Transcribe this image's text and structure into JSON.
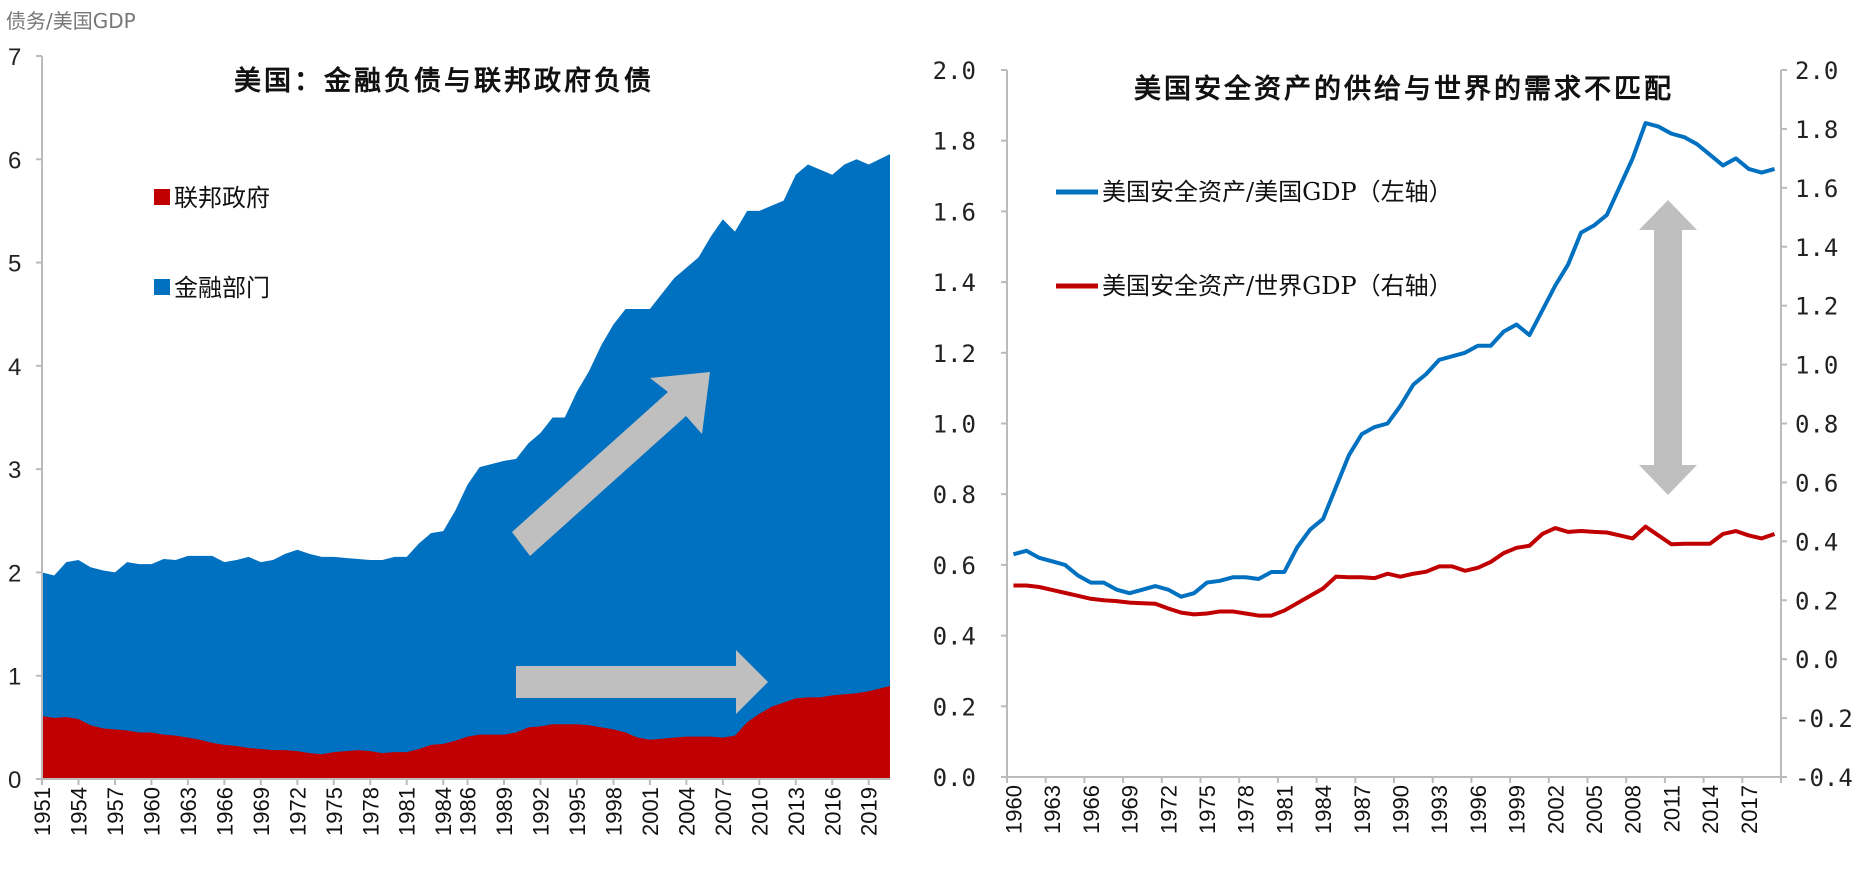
{
  "unit_label": "债务/美国GDP",
  "chart_data": [
    {
      "type": "area",
      "stacked": true,
      "title": "美国：金融负债与联邦政府负债",
      "ylabel": "债务/美国GDP",
      "ylim": [
        0,
        7
      ],
      "yticks": [
        "0",
        "1",
        "2",
        "3",
        "4",
        "5",
        "6",
        "7"
      ],
      "xticks": [
        "1951",
        "1954",
        "1957",
        "1960",
        "1963",
        "1966",
        "1969",
        "1972",
        "1975",
        "1978",
        "1981",
        "1984",
        "1986",
        "1989",
        "1992",
        "1995",
        "1998",
        "2001",
        "2004",
        "2007",
        "2010",
        "2013",
        "2016",
        "2019"
      ],
      "grid": false,
      "legend_position": "top-left",
      "x": [
        1951,
        1952,
        1953,
        1954,
        1955,
        1956,
        1957,
        1958,
        1959,
        1960,
        1961,
        1962,
        1963,
        1964,
        1965,
        1966,
        1967,
        1968,
        1969,
        1970,
        1971,
        1972,
        1973,
        1974,
        1975,
        1976,
        1977,
        1978,
        1979,
        1980,
        1981,
        1982,
        1983,
        1984,
        1985,
        1986,
        1987,
        1988,
        1989,
        1990,
        1991,
        1992,
        1993,
        1994,
        1995,
        1996,
        1997,
        1998,
        1999,
        2000,
        2001,
        2002,
        2003,
        2004,
        2005,
        2006,
        2007,
        2008,
        2009,
        2010,
        2011,
        2012,
        2013,
        2014,
        2015,
        2016,
        2017,
        2018,
        2019,
        2020
      ],
      "series": [
        {
          "name": "联邦政府",
          "color": "#C00000",
          "values": [
            0.61,
            0.59,
            0.6,
            0.58,
            0.52,
            0.49,
            0.48,
            0.47,
            0.45,
            0.45,
            0.43,
            0.42,
            0.4,
            0.38,
            0.35,
            0.33,
            0.32,
            0.3,
            0.29,
            0.28,
            0.28,
            0.27,
            0.25,
            0.24,
            0.26,
            0.27,
            0.28,
            0.27,
            0.25,
            0.26,
            0.26,
            0.29,
            0.33,
            0.34,
            0.37,
            0.41,
            0.43,
            0.43,
            0.43,
            0.45,
            0.5,
            0.51,
            0.53,
            0.53,
            0.53,
            0.52,
            0.5,
            0.48,
            0.45,
            0.4,
            0.38,
            0.39,
            0.4,
            0.41,
            0.41,
            0.41,
            0.4,
            0.42,
            0.55,
            0.63,
            0.7,
            0.74,
            0.78,
            0.79,
            0.79,
            0.81,
            0.82,
            0.83,
            0.85,
            0.9
          ]
        },
        {
          "name": "金融部门",
          "color": "#0070C0",
          "total_values": [
            2.0,
            1.97,
            2.1,
            2.12,
            2.05,
            2.02,
            2.0,
            2.1,
            2.08,
            2.08,
            2.13,
            2.12,
            2.16,
            2.16,
            2.16,
            2.1,
            2.12,
            2.15,
            2.1,
            2.12,
            2.18,
            2.22,
            2.18,
            2.15,
            2.15,
            2.14,
            2.13,
            2.12,
            2.12,
            2.15,
            2.15,
            2.28,
            2.38,
            2.4,
            2.6,
            2.85,
            3.02,
            3.05,
            3.08,
            3.1,
            3.25,
            3.35,
            3.5,
            3.5,
            3.75,
            3.95,
            4.2,
            4.4,
            4.55,
            4.55,
            4.55,
            4.7,
            4.85,
            4.95,
            5.05,
            5.25,
            5.42,
            5.3,
            5.5,
            5.5,
            5.55,
            5.6,
            5.85,
            5.95,
            5.9,
            5.85,
            5.95,
            6.0,
            5.95,
            6.05
          ]
        }
      ],
      "annotations": [
        "arrow-up-right",
        "arrow-right"
      ]
    },
    {
      "type": "line",
      "title": "美国安全资产的供给与世界的需求不匹配",
      "ylim_left": [
        0,
        2.0
      ],
      "ylim_right": [
        -0.4,
        2.0
      ],
      "yticks_left": [
        "0.0",
        "0.2",
        "0.4",
        "0.6",
        "0.8",
        "1.0",
        "1.2",
        "1.4",
        "1.6",
        "1.8",
        "2.0"
      ],
      "yticks_right": [
        "-0.4",
        "-0.2",
        "0.0",
        "0.2",
        "0.4",
        "0.6",
        "0.8",
        "1.0",
        "1.2",
        "1.4",
        "1.6",
        "1.8",
        "2.0"
      ],
      "xticks": [
        "1960",
        "1963",
        "1966",
        "1969",
        "1972",
        "1975",
        "1978",
        "1981",
        "1984",
        "1987",
        "1990",
        "1993",
        "1996",
        "1999",
        "2002",
        "2005",
        "2008",
        "2011",
        "2014",
        "2017"
      ],
      "grid": false,
      "legend_position": "top-left",
      "x_start": 1960,
      "series": [
        {
          "name": "美国安全资产/美国GDP（左轴）",
          "axis": "left",
          "color": "#0070C0",
          "values": [
            0.63,
            0.64,
            0.62,
            0.61,
            0.6,
            0.57,
            0.55,
            0.55,
            0.53,
            0.52,
            0.53,
            0.54,
            0.53,
            0.51,
            0.52,
            0.55,
            0.555,
            0.565,
            0.565,
            0.56,
            0.58,
            0.58,
            0.65,
            0.7,
            0.73,
            0.82,
            0.91,
            0.97,
            0.99,
            1.0,
            1.05,
            1.11,
            1.14,
            1.18,
            1.19,
            1.2,
            1.22,
            1.22,
            1.26,
            1.28,
            1.25,
            1.32,
            1.39,
            1.45,
            1.54,
            1.56,
            1.59,
            1.67,
            1.75,
            1.85,
            1.84,
            1.82,
            1.81,
            1.79,
            1.76,
            1.73,
            1.75,
            1.72,
            1.71,
            1.72
          ]
        },
        {
          "name": "美国安全资产/世界GDP（右轴）",
          "axis": "right",
          "color": "#C00000",
          "values": [
            0.25,
            0.25,
            0.245,
            0.235,
            0.225,
            0.215,
            0.205,
            0.2,
            0.197,
            0.192,
            0.19,
            0.188,
            0.172,
            0.158,
            0.152,
            0.155,
            0.162,
            0.162,
            0.155,
            0.148,
            0.148,
            0.165,
            0.19,
            0.215,
            0.24,
            0.28,
            0.278,
            0.278,
            0.275,
            0.29,
            0.28,
            0.29,
            0.297,
            0.315,
            0.315,
            0.3,
            0.31,
            0.33,
            0.36,
            0.378,
            0.385,
            0.425,
            0.445,
            0.432,
            0.435,
            0.432,
            0.43,
            0.42,
            0.41,
            0.45,
            0.42,
            0.39,
            0.392,
            0.392,
            0.392,
            0.425,
            0.435,
            0.42,
            0.41,
            0.425
          ]
        }
      ],
      "annotations": [
        "double-arrow-vertical"
      ]
    }
  ]
}
